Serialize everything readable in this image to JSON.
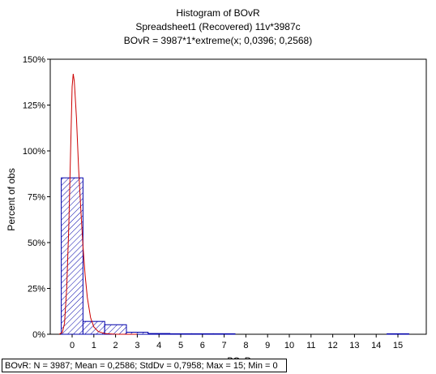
{
  "chart_data": {
    "type": "bar",
    "title": "Histogram of BOvR",
    "subtitle": "Spreadsheet1  (Recovered) 11v*3987c",
    "fit_label": "BOvR = 3987*1*extreme(x; 0,0396; 0,2568)",
    "xlabel": "BOvR",
    "ylabel": "Percent of obs",
    "categories": [
      "0",
      "1",
      "2",
      "3",
      "4",
      "5",
      "6",
      "7",
      "8",
      "9",
      "10",
      "11",
      "12",
      "13",
      "14",
      "15"
    ],
    "values": [
      85.3,
      7.0,
      5.2,
      1.1,
      0.4,
      0.1,
      0.05,
      0.02,
      0,
      0,
      0,
      0,
      0,
      0,
      0,
      0.02
    ],
    "ylim": [
      0,
      150
    ],
    "yticks": [
      "0%",
      "25%",
      "50%",
      "75%",
      "100%",
      "125%",
      "150%"
    ],
    "ytick_values": [
      0,
      25,
      50,
      75,
      100,
      125,
      150
    ],
    "fit_curve": {
      "name": "extreme",
      "x": [
        -0.6,
        -0.45,
        -0.35,
        -0.25,
        -0.15,
        -0.05,
        0,
        0.05,
        0.1,
        0.2,
        0.3,
        0.4,
        0.5,
        0.6,
        0.7,
        0.85,
        1,
        1.2,
        1.5,
        2,
        2.5,
        3
      ],
      "y": [
        0,
        1,
        6,
        25,
        60,
        110,
        135,
        142,
        138,
        118,
        90,
        68,
        48,
        32,
        20,
        9,
        4,
        1.5,
        0.4,
        0,
        0,
        0
      ],
      "color": "#cc0000"
    },
    "bar_color": "#0000aa",
    "grid": false,
    "stats": "BOvR:   N = 3987; Mean = 0,2586; StdDv = 0,7958; Max = 15; Min = 0"
  }
}
